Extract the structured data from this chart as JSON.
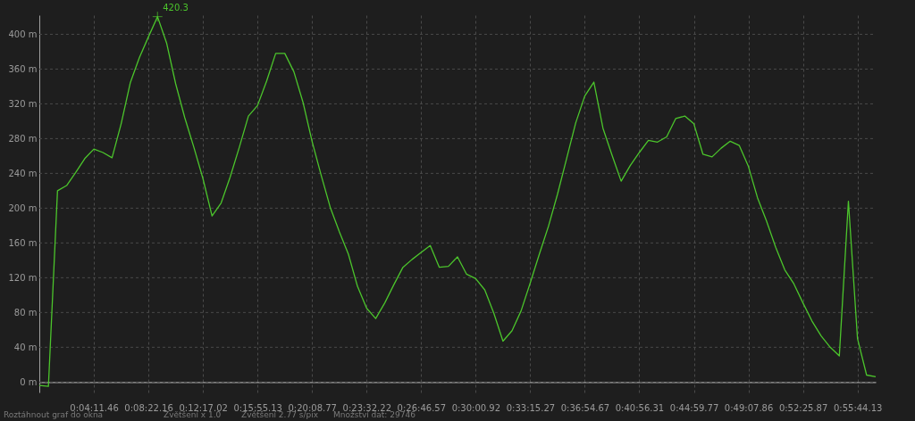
{
  "chart_data": {
    "type": "line",
    "categories": [
      null,
      null,
      null,
      null,
      null,
      null,
      "0:04:11.46",
      null,
      null,
      null,
      null,
      null,
      "0:08:22.16",
      null,
      null,
      null,
      null,
      null,
      "0:12:17.02",
      null,
      null,
      null,
      null,
      null,
      "0:15:55.13",
      null,
      null,
      null,
      null,
      null,
      "0:20:08.77",
      null,
      null,
      null,
      null,
      null,
      "0:23:32.22",
      null,
      null,
      null,
      null,
      null,
      "0:26:46.57",
      null,
      null,
      null,
      null,
      null,
      "0:30:00.92",
      null,
      null,
      null,
      null,
      null,
      "0:33:15.27",
      null,
      null,
      null,
      null,
      null,
      "0:36:54.67",
      null,
      null,
      null,
      null,
      null,
      "0:40:56.31",
      null,
      null,
      null,
      null,
      null,
      "0:44:59.77",
      null,
      null,
      null,
      null,
      null,
      "0:49:07.86",
      null,
      null,
      null,
      null,
      null,
      "0:52:25.87",
      null,
      null,
      null,
      null,
      null,
      "0:55:44.13",
      null,
      null
    ],
    "series": [
      {
        "color": "#4cc52c",
        "values": [
          -4,
          -5,
          220,
          226,
          241,
          257,
          268,
          264,
          258,
          297,
          344,
          373,
          397,
          420.3,
          390,
          343,
          304,
          270,
          234,
          191,
          206,
          236,
          270,
          306,
          318,
          346,
          378,
          378,
          357,
          322,
          277,
          238,
          201,
          173,
          147,
          110,
          85,
          73,
          91,
          112,
          132,
          141,
          149,
          157,
          132,
          133,
          144,
          124,
          119,
          106,
          79,
          47,
          59,
          82,
          114,
          147,
          179,
          216,
          257,
          298,
          329,
          345,
          292,
          261,
          231,
          249,
          264,
          278,
          276,
          282,
          303,
          306,
          297,
          262,
          259,
          269,
          277,
          272,
          248,
          212,
          185,
          155,
          129,
          113,
          91,
          70,
          53,
          40,
          30,
          208,
          50,
          8,
          6
        ]
      }
    ],
    "ylim": [
      -12,
      422
    ],
    "yticks": [
      {
        "value": 0,
        "label": "0 m"
      },
      {
        "value": 40,
        "label": "40 m"
      },
      {
        "value": 80,
        "label": "80 m"
      },
      {
        "value": 120,
        "label": "120 m"
      },
      {
        "value": 160,
        "label": "160 m"
      },
      {
        "value": 200,
        "label": "200 m"
      },
      {
        "value": 240,
        "label": "240 m"
      },
      {
        "value": 280,
        "label": "280 m"
      },
      {
        "value": 320,
        "label": "320 m"
      },
      {
        "value": 360,
        "label": "360 m"
      },
      {
        "value": 400,
        "label": "400 m"
      }
    ],
    "grid": true,
    "line_style": "solid",
    "annotations": [
      "420.3",
      "Roztáhnout graf do okna",
      "Zvětšení x 1.0",
      "Zvětšení  2.77 s/pix",
      "Množství dat: 29746"
    ]
  }
}
